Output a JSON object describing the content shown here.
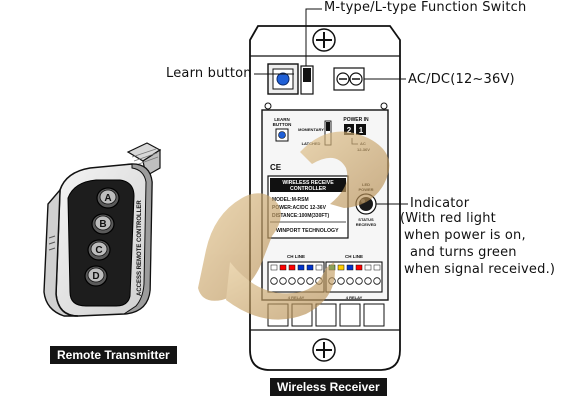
{
  "callouts": {
    "switch": "M-type/L-type Function Switch",
    "learn": "Learn button",
    "power": "AC/DC(12~36V)",
    "indicator_title": "Indicator",
    "indicator_line1": "(With red light",
    "indicator_line2": "when power is on,",
    "indicator_line3": "and turns green",
    "indicator_line4": "when signal received.)"
  },
  "captions": {
    "transmitter": "Remote Transmitter",
    "receiver": "Wireless Receiver"
  },
  "remote": {
    "buttons": [
      "A",
      "B",
      "C",
      "D"
    ],
    "side_label": "ACCESS REMOTE CONTROLLER"
  },
  "board": {
    "learn_label_1": "LEARN",
    "learn_label_2": "BUTTON",
    "switch_top": "MOMENTARY",
    "switch_bottom": "LATCHED",
    "power_label": "POWER IN",
    "power_pins": [
      "2",
      "1"
    ],
    "power_sub_1": "AC",
    "power_sub_2": "12-36V",
    "ce_mark": "CE",
    "sticker_title_1": "WIRELESS RECEIVE",
    "sticker_title_2": "CONTROLLER",
    "sticker_model": "MODEL:M-RSM",
    "sticker_power": "POWER:AC/DC 12-36V",
    "sticker_distance": "DISTANCE:100M(330FT)",
    "sticker_brand": "WINPORT TECHNOLOGY",
    "led_label_1": "LED",
    "led_label_2": "POWER",
    "led_label_3": "STATUS",
    "led_label_4": "RECEIVED",
    "relay_block_left": "CH LINE",
    "relay_block_right": "CH LINE",
    "relay_channels": [
      "RL1",
      "RL2",
      "RL3",
      "RL4"
    ],
    "relay_sub": "4 RELAY"
  },
  "colors": {
    "ink": "#111111",
    "learn_button": "#1f5fd6",
    "led_housing": "#1a1a1a",
    "watermark": "#c9a46c",
    "terminal_colors_left": [
      "#ffffff",
      "#ff0000",
      "#ff0000",
      "#0033cc",
      "#0033cc",
      "#ffffff"
    ],
    "terminal_colors_right": [
      "#22a03a",
      "#ffcc00",
      "#0033cc",
      "#ff0000",
      "#ffffff",
      "#ffffff"
    ]
  }
}
